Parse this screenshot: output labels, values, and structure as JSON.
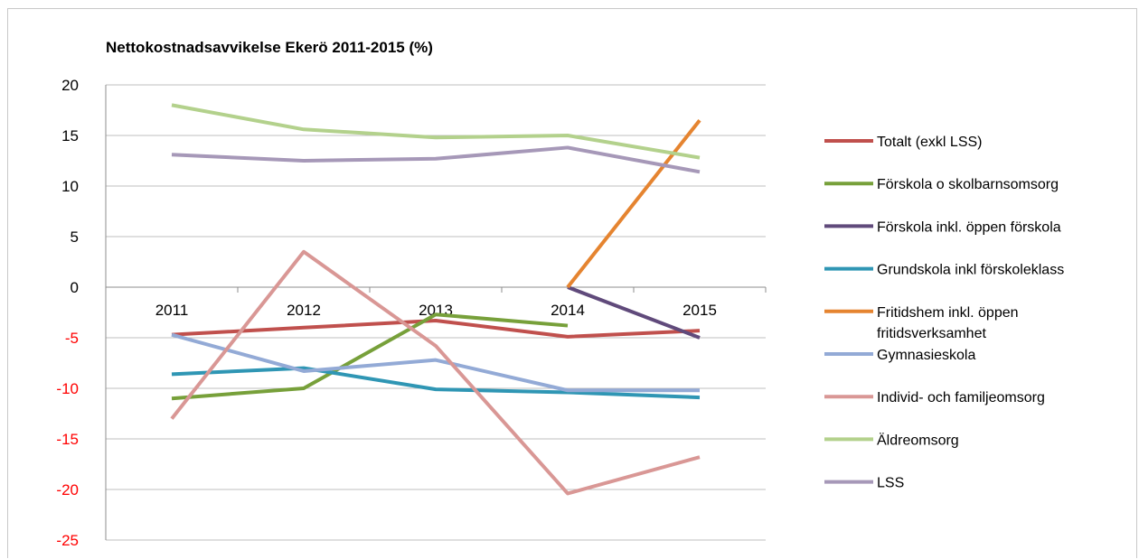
{
  "chart_data": {
    "type": "line",
    "title": "Nettokostnadsavvikelse Ekerö 2011-2015 (%)",
    "xlabel": "",
    "ylabel": "",
    "categories": [
      "2011",
      "2012",
      "2013",
      "2014",
      "2015"
    ],
    "ylim": [
      -25,
      20
    ],
    "yticks": [
      20,
      15,
      10,
      5,
      0,
      -5,
      -10,
      -15,
      -20,
      -25
    ],
    "grid": true,
    "legend_position": "right",
    "series": [
      {
        "name": "Totalt (exkl LSS)",
        "color": "#c0504d",
        "values": [
          -4.7,
          -4.0,
          -3.3,
          -4.9,
          -4.3
        ]
      },
      {
        "name": "Förskola o skolbarnsomsorg",
        "color": "#77a03a",
        "values": [
          -11.0,
          -10.0,
          -2.7,
          -3.8,
          null
        ]
      },
      {
        "name": "Förskola inkl. öppen förskola",
        "color": "#604a7b",
        "values": [
          null,
          null,
          null,
          0.0,
          -5.0
        ]
      },
      {
        "name": "Grundskola  inkl förskoleklass",
        "color": "#2f96b4",
        "values": [
          -8.6,
          -8.0,
          -10.1,
          -10.4,
          -10.9
        ]
      },
      {
        "name": "Fritidshem inkl. öppen fritidsverksamhet",
        "color": "#e58430",
        "values": [
          null,
          null,
          null,
          0.0,
          16.5
        ]
      },
      {
        "name": "Gymnasieskola",
        "color": "#93aad6",
        "values": [
          -4.7,
          -8.3,
          -7.2,
          -10.2,
          -10.2
        ]
      },
      {
        "name": "Individ- och familjeomsorg",
        "color": "#d99795",
        "values": [
          -13.0,
          3.5,
          -5.8,
          -20.4,
          -16.8
        ]
      },
      {
        "name": "Äldreomsorg",
        "color": "#b3d18c",
        "values": [
          18.0,
          15.6,
          14.8,
          15.0,
          12.8
        ]
      },
      {
        "name": "LSS",
        "color": "#a698b8",
        "values": [
          13.1,
          12.5,
          12.7,
          13.8,
          11.4
        ]
      }
    ],
    "legend_lines": [
      [
        "Totalt (exkl LSS)"
      ],
      [
        "Förskola o skolbarnsomsorg"
      ],
      [
        "Förskola inkl. öppen förskola"
      ],
      [
        "Grundskola  inkl förskoleklass"
      ],
      [
        "Fritidshem inkl. öppen",
        "fritidsverksamhet"
      ],
      [
        "Gymnasieskola"
      ],
      [
        "Individ- och familjeomsorg"
      ],
      [
        "Äldreomsorg"
      ],
      [
        "LSS"
      ]
    ]
  }
}
